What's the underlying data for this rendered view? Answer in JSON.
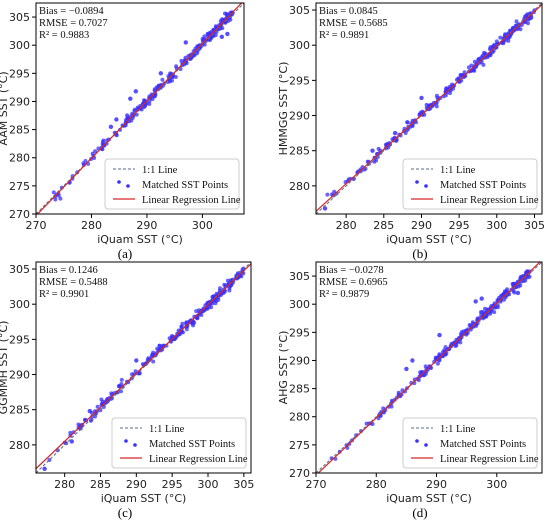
{
  "figure": {
    "colors": {
      "points": "#3a2fff",
      "regression": "#d62728",
      "identity": "#5a6b8c",
      "frame": "#000000"
    }
  },
  "chart_data": [
    {
      "type": "scatter",
      "panel_label": "(a)",
      "xlabel": "iQuam SST (°C)",
      "ylabel": "AAM SST (°C)",
      "xlim": [
        270,
        307.5
      ],
      "ylim": [
        270,
        307.5
      ],
      "xticks": [
        270,
        280,
        290,
        300
      ],
      "yticks": [
        270,
        275,
        280,
        285,
        290,
        295,
        300,
        305
      ],
      "stats": [
        "Bias = −0.0894",
        "RMSE = 0.7027",
        "R² = 0.9883"
      ],
      "legend": {
        "placement": "bottom-right",
        "entries": [
          "1:1 Line",
          "Matched SST Points",
          "Linear Regression Line"
        ]
      },
      "regression": {
        "slope": 1.02,
        "intercept": -5.7
      },
      "point_range": [
        271.5,
        305.5
      ],
      "scatter_spread": 0.75,
      "outliers": [
        [
          283.5,
          285.5
        ],
        [
          284.5,
          286.8
        ],
        [
          287,
          290.5
        ],
        [
          288,
          291.8
        ],
        [
          292.5,
          295
        ],
        [
          297,
          300.5
        ],
        [
          303.5,
          301.5
        ],
        [
          304.5,
          302
        ]
      ]
    },
    {
      "type": "scatter",
      "panel_label": "(b)",
      "xlabel": "iQuam SST (°C)",
      "ylabel": "HMMGG SST (°C)",
      "xlim": [
        276,
        306
      ],
      "ylim": [
        276,
        306
      ],
      "xticks": [
        280,
        285,
        290,
        295,
        300,
        305
      ],
      "yticks": [
        280,
        285,
        290,
        295,
        300,
        305
      ],
      "stats": [
        "Bias = 0.0845",
        "RMSE = 0.5685",
        "R² = 0.9891"
      ],
      "legend": {
        "placement": "bottom-right",
        "entries": [
          "1:1 Line",
          "Matched SST Points",
          "Linear Regression Line"
        ]
      },
      "regression": {
        "slope": 0.98,
        "intercept": 5.9
      },
      "point_range": [
        277,
        305
      ],
      "scatter_spread": 0.6,
      "outliers": [
        [
          277.2,
          276.8
        ],
        [
          281,
          281
        ],
        [
          283.5,
          285
        ],
        [
          286.5,
          287.5
        ],
        [
          290,
          292.5
        ]
      ]
    },
    {
      "type": "scatter",
      "panel_label": "(c)",
      "xlabel": "iQuam SST (°C)",
      "ylabel": "GGMMH SST (°C)",
      "xlim": [
        276,
        306
      ],
      "ylim": [
        276,
        306
      ],
      "xticks": [
        280,
        285,
        290,
        295,
        300,
        305
      ],
      "yticks": [
        280,
        285,
        290,
        295,
        300,
        305
      ],
      "stats": [
        "Bias = 0.1246",
        "RMSE = 0.5488",
        "R² = 0.9901"
      ],
      "legend": {
        "placement": "bottom-right",
        "entries": [
          "1:1 Line",
          "Matched SST Points",
          "Linear Regression Line"
        ]
      },
      "regression": {
        "slope": 0.97,
        "intercept": 8.9
      },
      "point_range": [
        277,
        305
      ],
      "scatter_spread": 0.58,
      "outliers": [
        [
          277.2,
          276.6
        ],
        [
          281,
          280.5
        ],
        [
          283.5,
          284.8
        ],
        [
          286,
          286.5
        ],
        [
          290,
          292
        ]
      ]
    },
    {
      "type": "scatter",
      "panel_label": "(d)",
      "xlabel": "iQuam SST (°C)",
      "ylabel": "AHG SST (°C)",
      "xlim": [
        270,
        307.5
      ],
      "ylim": [
        270,
        307.5
      ],
      "xticks": [
        270,
        280,
        290,
        300
      ],
      "yticks": [
        270,
        275,
        280,
        285,
        290,
        295,
        300,
        305
      ],
      "stats": [
        "Bias = −0.0278",
        "RMSE = 0.6965",
        "R² = 0.9879"
      ],
      "legend": {
        "placement": "bottom-right",
        "entries": [
          "1:1 Line",
          "Matched SST Points",
          "Linear Regression Line"
        ]
      },
      "regression": {
        "slope": 1.02,
        "intercept": -5.8
      },
      "point_range": [
        271.5,
        305.5
      ],
      "scatter_spread": 0.75,
      "outliers": [
        [
          285,
          288.5
        ],
        [
          286,
          290
        ],
        [
          290.5,
          294.5
        ],
        [
          296.5,
          300.5
        ],
        [
          297.5,
          301
        ],
        [
          303.5,
          302
        ]
      ]
    }
  ]
}
